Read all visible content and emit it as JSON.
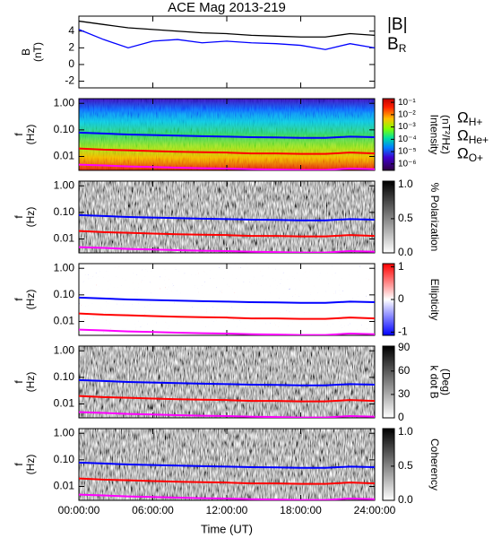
{
  "chart_data": {
    "type": "multi",
    "title": "ACE Mag 2013-219",
    "xlabel": "Time (UT)",
    "xlim": [
      0,
      24
    ],
    "xticks": [
      {
        "value": 0,
        "label": "00:00:00"
      },
      {
        "value": 6,
        "label": "06:00:00"
      },
      {
        "value": 12,
        "label": "12:00:00"
      },
      {
        "value": 18,
        "label": "18:00:00"
      },
      {
        "value": 24,
        "label": "24:00:00"
      }
    ],
    "x": [
      0,
      2,
      4,
      6,
      8,
      10,
      12,
      14,
      16,
      18,
      20,
      22,
      24
    ],
    "panels": [
      {
        "type": "line",
        "ylabel": [
          "B",
          "(nT)"
        ],
        "ylim": [
          -2.8,
          5.8
        ],
        "yticks": [
          -2,
          0,
          2,
          4
        ],
        "series": [
          {
            "name": "|B|",
            "color": "#000000",
            "values": [
              5.2,
              4.8,
              4.4,
              4.2,
              4.0,
              3.8,
              3.7,
              3.5,
              3.4,
              3.3,
              3.3,
              3.7,
              3.5
            ]
          },
          {
            "name": "B",
            "subscript": "R",
            "color": "#0000ff",
            "values": [
              4.2,
              3.0,
              2.0,
              2.8,
              3.0,
              2.6,
              2.8,
              2.6,
              2.5,
              2.3,
              1.8,
              2.5,
              2.0
            ]
          }
        ]
      },
      {
        "type": "spectrogram",
        "colormap": "jet",
        "ylabel": [
          "f",
          "(Hz)"
        ],
        "ylog": true,
        "ylim": [
          0.003,
          1.5
        ],
        "yticks": [
          {
            "value": 1,
            "label": "1.00"
          },
          {
            "value": 0.1,
            "label": "0.10"
          },
          {
            "value": 0.01,
            "label": "0.01"
          }
        ],
        "colorbar": {
          "label": [
            "Intensity",
            "(nT²/Hz)"
          ],
          "log": true,
          "lim": [
            3e-07,
            0.2
          ],
          "ticks": [
            {
              "value": 0.1,
              "label": "10⁻¹"
            },
            {
              "value": 0.01,
              "label": "10⁻²"
            },
            {
              "value": 0.001,
              "label": "10⁻³"
            },
            {
              "value": 0.0001,
              "label": "10⁻⁴"
            },
            {
              "value": 1e-05,
              "label": "10⁻⁵"
            },
            {
              "value": 1e-06,
              "label": "10⁻⁶"
            }
          ]
        },
        "series": [
          {
            "name": "Ω",
            "subscript": "H+",
            "color": "#0000ff",
            "values": [
              0.079,
              0.073,
              0.067,
              0.064,
              0.061,
              0.058,
              0.056,
              0.053,
              0.052,
              0.05,
              0.05,
              0.056,
              0.053
            ]
          },
          {
            "name": "Ω",
            "subscript": "He+",
            "color": "#ff0000",
            "values": [
              0.02,
              0.018,
              0.017,
              0.016,
              0.015,
              0.0145,
              0.014,
              0.013,
              0.013,
              0.0125,
              0.0125,
              0.014,
              0.013
            ]
          },
          {
            "name": "Ω",
            "subscript": "O+",
            "color": "#ff00ff",
            "values": [
              0.0049,
              0.0046,
              0.0042,
              0.004,
              0.0038,
              0.0036,
              0.0035,
              0.0033,
              0.0032,
              0.0031,
              0.0031,
              0.0035,
              0.0033
            ]
          }
        ]
      },
      {
        "type": "spectrogram",
        "colormap": "gray_r",
        "ylabel": [
          "f",
          "(Hz)"
        ],
        "ylog": true,
        "ylim": [
          0.003,
          1.5
        ],
        "yticks": [
          {
            "value": 1,
            "label": "1.00"
          },
          {
            "value": 0.1,
            "label": "0.10"
          },
          {
            "value": 0.01,
            "label": "0.01"
          }
        ],
        "colorbar": {
          "label": [
            "% Polarization"
          ],
          "log": false,
          "lim": [
            0,
            1.05
          ],
          "ticks": [
            {
              "value": 1,
              "label": "1.0"
            },
            0.5,
            {
              "value": 0,
              "label": "0.0"
            }
          ]
        },
        "series": [
          {
            "color": "#0000ff",
            "values": [
              0.079,
              0.073,
              0.067,
              0.064,
              0.061,
              0.058,
              0.056,
              0.053,
              0.052,
              0.05,
              0.05,
              0.056,
              0.053
            ]
          },
          {
            "color": "#ff0000",
            "values": [
              0.02,
              0.018,
              0.017,
              0.016,
              0.015,
              0.0145,
              0.014,
              0.013,
              0.013,
              0.0125,
              0.0125,
              0.014,
              0.013
            ]
          },
          {
            "color": "#ff00ff",
            "values": [
              0.0049,
              0.0046,
              0.0042,
              0.004,
              0.0038,
              0.0036,
              0.0035,
              0.0033,
              0.0032,
              0.0031,
              0.0031,
              0.0035,
              0.0033
            ]
          }
        ]
      },
      {
        "type": "spectrogram",
        "colormap": "bwr",
        "ylabel": [
          "f",
          "(Hz)"
        ],
        "ylog": true,
        "ylim": [
          0.003,
          1.5
        ],
        "yticks": [
          {
            "value": 1,
            "label": "1.00"
          },
          {
            "value": 0.1,
            "label": "0.10"
          },
          {
            "value": 0.01,
            "label": "0.01"
          }
        ],
        "colorbar": {
          "label": [
            "Ellipticity"
          ],
          "log": false,
          "lim": [
            -1.1,
            1.1
          ],
          "ticks": [
            1,
            0,
            -1
          ]
        },
        "series": [
          {
            "color": "#0000ff",
            "values": [
              0.079,
              0.073,
              0.067,
              0.064,
              0.061,
              0.058,
              0.056,
              0.053,
              0.052,
              0.05,
              0.05,
              0.056,
              0.053
            ]
          },
          {
            "color": "#ff0000",
            "values": [
              0.02,
              0.018,
              0.017,
              0.016,
              0.015,
              0.0145,
              0.014,
              0.013,
              0.013,
              0.0125,
              0.0125,
              0.014,
              0.013
            ]
          },
          {
            "color": "#ff00ff",
            "values": [
              0.0049,
              0.0046,
              0.0042,
              0.004,
              0.0038,
              0.0036,
              0.0035,
              0.0033,
              0.0032,
              0.0031,
              0.0031,
              0.0035,
              0.0033
            ]
          }
        ]
      },
      {
        "type": "spectrogram",
        "colormap": "gray_r",
        "ylabel": [
          "f",
          "(Hz)"
        ],
        "ylog": true,
        "ylim": [
          0.003,
          1.5
        ],
        "yticks": [
          {
            "value": 1,
            "label": "1.00"
          },
          {
            "value": 0.1,
            "label": "0.10"
          },
          {
            "value": 0.01,
            "label": "0.01"
          }
        ],
        "colorbar": {
          "label": [
            "k dot B",
            "(Deg)"
          ],
          "log": false,
          "lim": [
            0,
            92
          ],
          "ticks": [
            90,
            60,
            30,
            0
          ]
        },
        "series": [
          {
            "color": "#0000ff",
            "values": [
              0.079,
              0.073,
              0.067,
              0.064,
              0.061,
              0.058,
              0.056,
              0.053,
              0.052,
              0.05,
              0.05,
              0.056,
              0.053
            ]
          },
          {
            "color": "#ff0000",
            "values": [
              0.02,
              0.018,
              0.017,
              0.016,
              0.015,
              0.0145,
              0.014,
              0.013,
              0.013,
              0.0125,
              0.0125,
              0.014,
              0.013
            ]
          },
          {
            "color": "#ff00ff",
            "values": [
              0.0049,
              0.0046,
              0.0042,
              0.004,
              0.0038,
              0.0036,
              0.0035,
              0.0033,
              0.0032,
              0.0031,
              0.0031,
              0.0035,
              0.0033
            ]
          }
        ]
      },
      {
        "type": "spectrogram",
        "colormap": "gray_r",
        "ylabel": [
          "f",
          "(Hz)"
        ],
        "ylog": true,
        "ylim": [
          0.003,
          1.5
        ],
        "yticks": [
          {
            "value": 1,
            "label": "1.00"
          },
          {
            "value": 0.1,
            "label": "0.10"
          },
          {
            "value": 0.01,
            "label": "0.01"
          }
        ],
        "colorbar": {
          "label": [
            "Coherency"
          ],
          "log": false,
          "lim": [
            0,
            1.05
          ],
          "ticks": [
            {
              "value": 1,
              "label": "1.0"
            },
            0.5,
            {
              "value": 0,
              "label": "0.0"
            }
          ]
        },
        "series": [
          {
            "color": "#0000ff",
            "values": [
              0.079,
              0.073,
              0.067,
              0.064,
              0.061,
              0.058,
              0.056,
              0.053,
              0.052,
              0.05,
              0.05,
              0.056,
              0.053
            ]
          },
          {
            "color": "#ff0000",
            "values": [
              0.02,
              0.018,
              0.017,
              0.016,
              0.015,
              0.0145,
              0.014,
              0.013,
              0.013,
              0.0125,
              0.0125,
              0.014,
              0.013
            ]
          },
          {
            "color": "#ff00ff",
            "values": [
              0.0049,
              0.0046,
              0.0042,
              0.004,
              0.0038,
              0.0036,
              0.0035,
              0.0033,
              0.0032,
              0.0031,
              0.0031,
              0.0035,
              0.0033
            ]
          }
        ]
      }
    ]
  }
}
